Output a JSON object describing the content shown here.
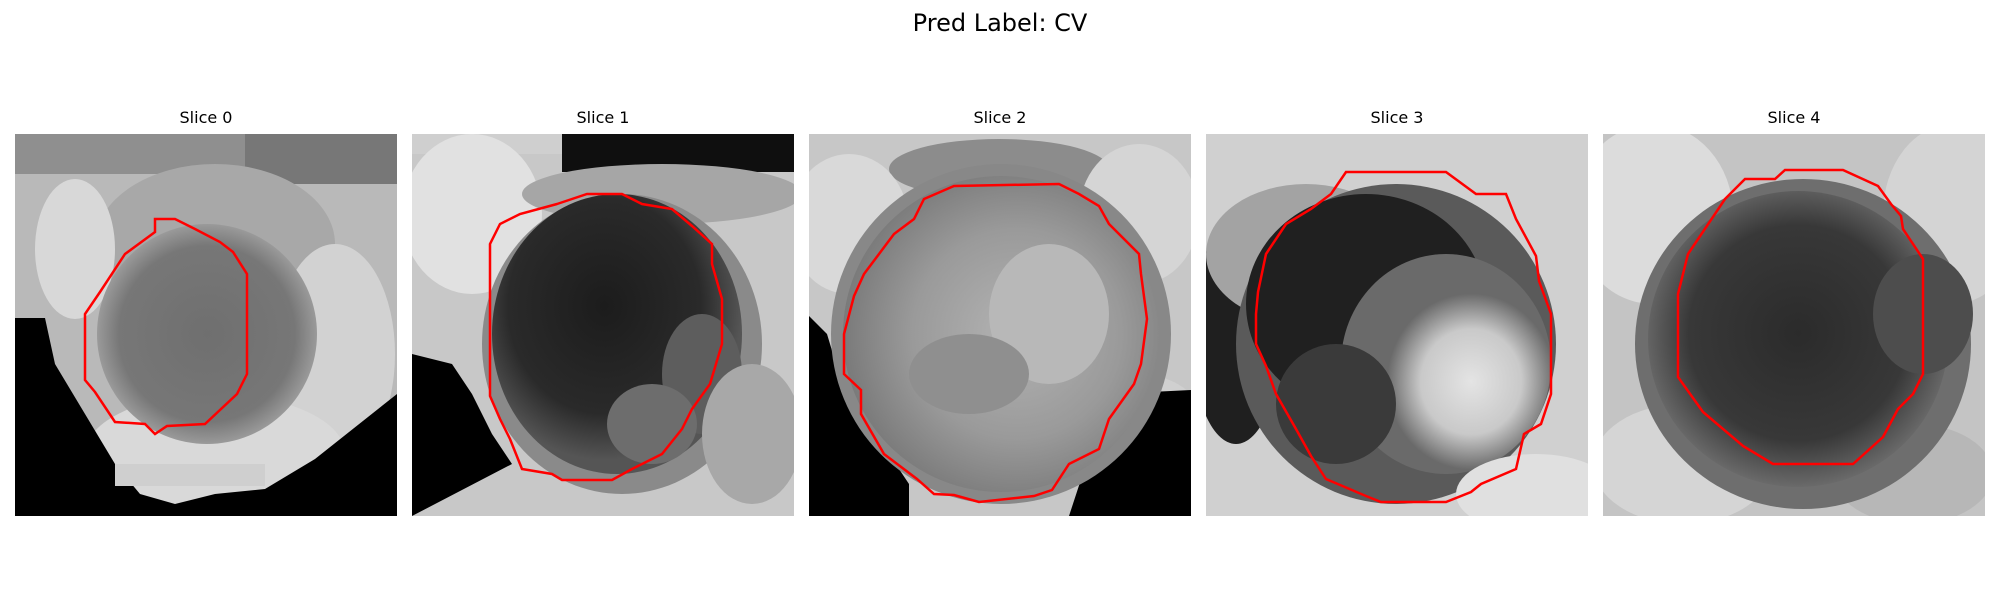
{
  "title": "Pred Label: CV",
  "slices": [
    {
      "label": "Slice 0",
      "overlay_color": "#ff0000",
      "theme": "gray-blob-on-light-with-black-corner"
    },
    {
      "label": "Slice 1",
      "overlay_color": "#ff0000",
      "theme": "dark-lesion"
    },
    {
      "label": "Slice 2",
      "overlay_color": "#ff0000",
      "theme": "gray-circle-with-black-corner"
    },
    {
      "label": "Slice 3",
      "overlay_color": "#ff0000",
      "theme": "dark-ring-bright-core"
    },
    {
      "label": "Slice 4",
      "overlay_color": "#ff0000",
      "theme": "dark-round-lesion"
    }
  ]
}
